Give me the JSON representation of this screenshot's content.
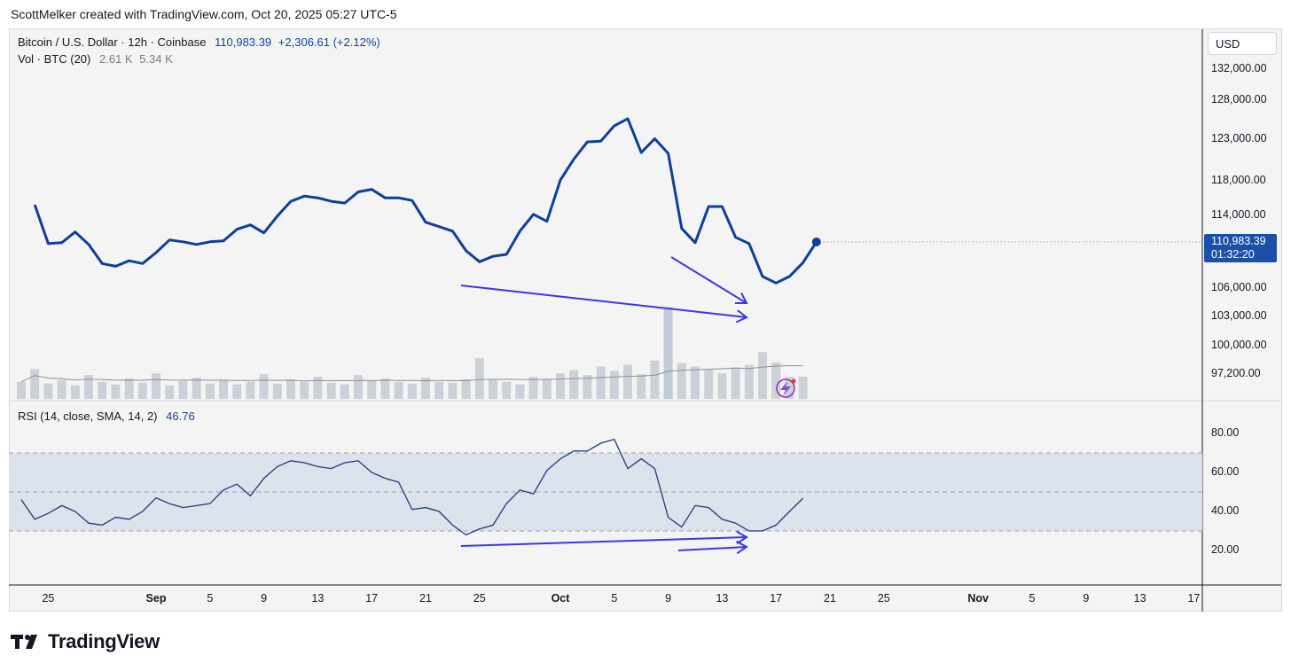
{
  "header": {
    "caption": "ScottMelker created with TradingView.com, Oct 20, 2025 05:27 UTC-5"
  },
  "legend": {
    "symbol": "Bitcoin / U.S. Dollar · 12h · Coinbase",
    "price": "110,983.39",
    "change": "+2,306.61 (+2.12%)",
    "vol_label": "Vol · BTC (20)",
    "vol_value1": "2.61 K",
    "vol_value2": "5.34 K",
    "rsi_label": "RSI (14, close, SMA, 14, 2)",
    "rsi_value": "46.76"
  },
  "currency": "USD",
  "price_tag": {
    "price": "110,983.39",
    "countdown": "01:32:20"
  },
  "brand": {
    "name": "TradingView"
  },
  "colors": {
    "price_line": "#0d3f9c",
    "rsi_line": "#1f3a7a",
    "annotation": "#3f35e8",
    "rsi_band": "#dde3ec",
    "volume": "#c4cad3",
    "volume_highlight": "#b9c3d3"
  },
  "chart_data": [
    {
      "type": "line",
      "title": "Bitcoin / U.S. Dollar · 12h · Coinbase",
      "x_axis_ticks": [
        "25",
        "Sep",
        "5",
        "9",
        "13",
        "17",
        "21",
        "25",
        "Oct",
        "5",
        "9",
        "13",
        "17",
        "21",
        "25",
        "Nov",
        "5",
        "9",
        "13",
        "17"
      ],
      "y_axis_ticks": [
        "132,000.00",
        "128,000.00",
        "123,000.00",
        "118,000.00",
        "114,000.00",
        "106,000.00",
        "103,000.00",
        "100,000.00",
        "97,200.00"
      ],
      "y_scale": "log",
      "x_range": [
        "Aug 23, 2025",
        "Nov 18, 2025"
      ],
      "series": [
        {
          "name": "Bitcoin / U.S. Dollar",
          "x": [
            "Aug 23",
            "Aug 24",
            "Aug 25",
            "Aug 26",
            "Aug 27",
            "Aug 28",
            "Aug 29",
            "Aug 30",
            "Aug 31",
            "Sep 1",
            "Sep 2",
            "Sep 3",
            "Sep 4",
            "Sep 5",
            "Sep 6",
            "Sep 7",
            "Sep 8",
            "Sep 9",
            "Sep 10",
            "Sep 11",
            "Sep 12",
            "Sep 13",
            "Sep 14",
            "Sep 15",
            "Sep 16",
            "Sep 17",
            "Sep 18",
            "Sep 19",
            "Sep 20",
            "Sep 21",
            "Sep 22",
            "Sep 23",
            "Sep 24",
            "Sep 25",
            "Sep 26",
            "Sep 27",
            "Sep 28",
            "Sep 29",
            "Sep 30",
            "Oct 1",
            "Oct 2",
            "Oct 3",
            "Oct 4",
            "Oct 5",
            "Oct 6",
            "Oct 7",
            "Oct 8",
            "Oct 9",
            "Oct 10",
            "Oct 11",
            "Oct 12",
            "Oct 13",
            "Oct 14",
            "Oct 15",
            "Oct 16",
            "Oct 17",
            "Oct 18",
            "Oct 19",
            "Oct 20"
          ],
          "values": [
            115200,
            110800,
            110900,
            112100,
            110700,
            108600,
            108300,
            108900,
            108600,
            109800,
            111200,
            111000,
            110700,
            111000,
            111100,
            112400,
            112900,
            112000,
            113900,
            115600,
            116200,
            116000,
            115600,
            115400,
            116700,
            117000,
            116000,
            116000,
            115700,
            113200,
            112700,
            112200,
            110000,
            108800,
            109400,
            109600,
            112200,
            114100,
            113300,
            118100,
            120600,
            122700,
            122800,
            124700,
            125600,
            121400,
            123100,
            121300,
            112500,
            110900,
            115000,
            115000,
            111500,
            110800,
            107200,
            106500,
            107200,
            108700,
            110983
          ]
        }
      ],
      "annotations": [
        "arrow from Sep 25 low to Oct 17 low",
        "arrow from Oct 11 to Oct 17 low"
      ]
    },
    {
      "type": "bar",
      "title": "Vol · BTC (20)",
      "series": [
        {
          "name": "Vol · BTC",
          "values": [
            2.0,
            3.5,
            1.8,
            2.2,
            1.6,
            2.8,
            2.0,
            1.7,
            2.4,
            1.9,
            3.0,
            1.6,
            2.1,
            2.5,
            1.8,
            2.2,
            1.7,
            2.0,
            2.9,
            1.8,
            2.3,
            2.0,
            2.6,
            1.9,
            1.7,
            2.8,
            2.1,
            2.4,
            2.0,
            1.8,
            2.5,
            2.0,
            1.9,
            2.3,
            4.8,
            2.2,
            2.0,
            1.7,
            2.6,
            2.3,
            3.0,
            3.4,
            2.8,
            3.8,
            3.3,
            4.0,
            2.9,
            4.5,
            10.8,
            4.2,
            3.8,
            3.5,
            3.0,
            3.7,
            4.0,
            5.5,
            4.3,
            2.6,
            2.61
          ],
          "moving_average": 5.34
        }
      ]
    },
    {
      "type": "line",
      "title": "RSI (14, close, SMA, 14, 2)",
      "y_axis_ticks": [
        "80.00",
        "60.00",
        "40.00",
        "20.00"
      ],
      "ylim": [
        0,
        90
      ],
      "bands": {
        "upper": 70,
        "middle": 50,
        "lower": 30
      },
      "series": [
        {
          "name": "RSI",
          "values": [
            46,
            36,
            39,
            43,
            40,
            34,
            33,
            37,
            36,
            40,
            47,
            44,
            42,
            43,
            44,
            51,
            54,
            48,
            57,
            63,
            66,
            65,
            63,
            62,
            65,
            66,
            60,
            57,
            55,
            41,
            42,
            40,
            33,
            28,
            31,
            33,
            44,
            51,
            49,
            61,
            67,
            71,
            71,
            75,
            77,
            62,
            67,
            62,
            37,
            32,
            43,
            42,
            36,
            34,
            30,
            30,
            33,
            40,
            46.76
          ]
        }
      ],
      "annotations": [
        "arrow from Sep 25 low to Oct 17",
        "arrow from Oct 11 to Oct 17"
      ]
    }
  ]
}
